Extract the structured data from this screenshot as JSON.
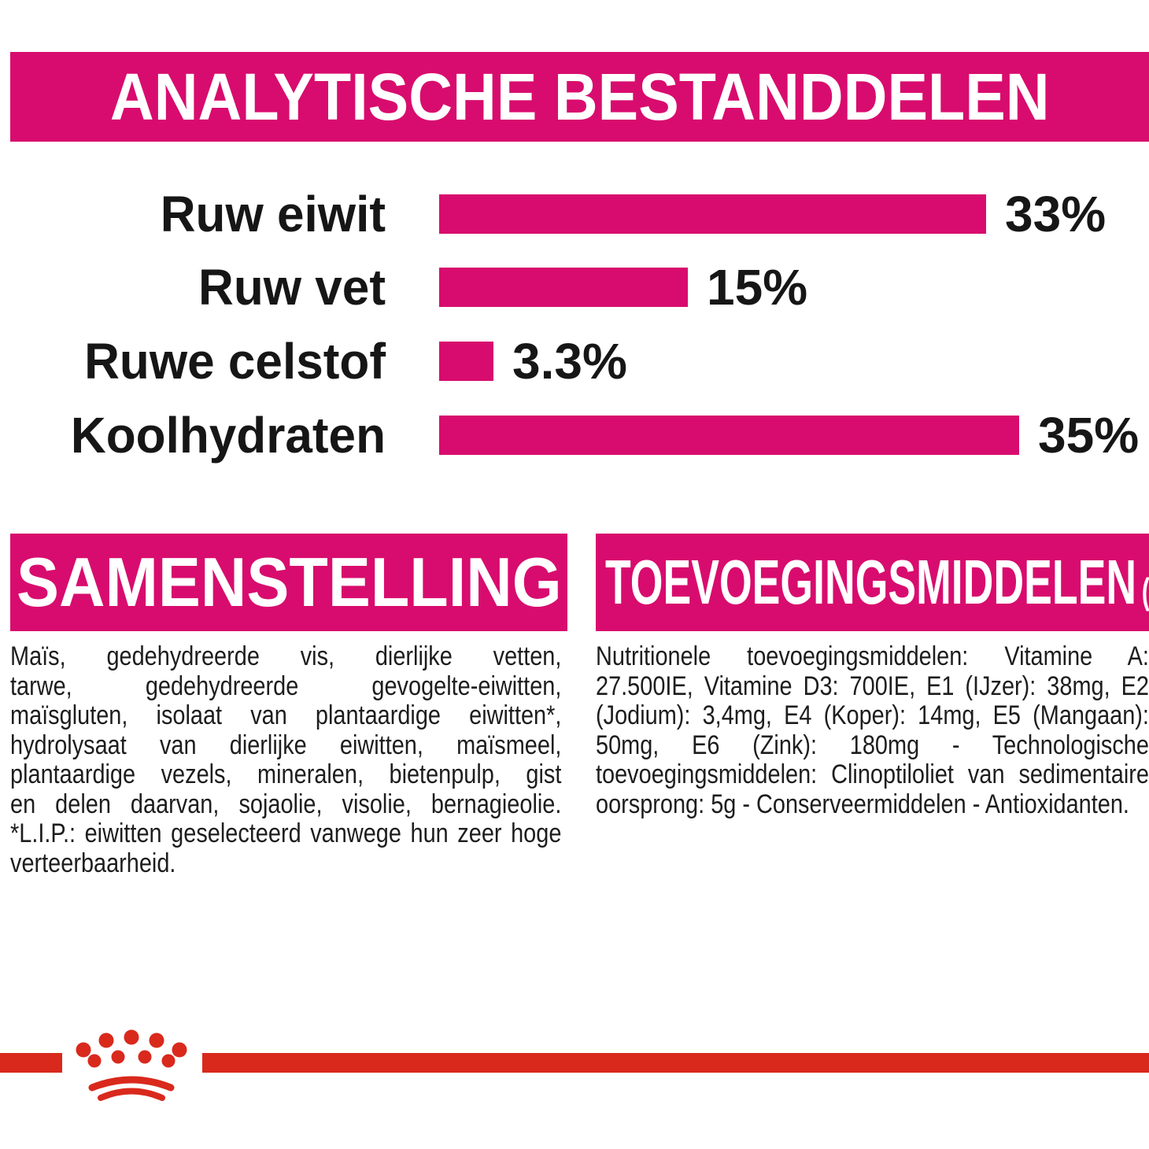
{
  "page": {
    "background_color": "#ffffff",
    "accent_magenta": "#d80c6e",
    "brand_red": "#d9291c",
    "text_color": "#1d1d1d"
  },
  "analytical_section": {
    "title": "ANALYTISCHE BESTANDDELEN"
  },
  "chart_data": {
    "type": "bar",
    "orientation": "horizontal",
    "title": "ANALYTISCHE BESTANDDELEN",
    "categories": [
      "Ruw eiwit",
      "Ruw vet",
      "Ruwe celstof",
      "Koolhydraten"
    ],
    "values": [
      33,
      15,
      3.3,
      35
    ],
    "value_labels": [
      "33%",
      "15%",
      "3.3%",
      "35%"
    ],
    "xlabel": "",
    "ylabel": "",
    "xlim": [
      0,
      35
    ],
    "grid": false,
    "legend": false,
    "bar_color": "#d80c6e"
  },
  "samenstelling_section": {
    "title": "SAMENSTELLING",
    "lines": [
      "Maïs, gedehydreerde vis, dierlijke vetten,",
      "tarwe, gedehydreerde gevogelte-eiwitten,",
      "maïsgluten, isolaat van plantaardige eiwitten*,",
      "hydrolysaat van dierlijke eiwitten, maïsmeel,",
      "plantaardige vezels, mineralen, bietenpulp, gist",
      "en delen daarvan, sojaolie, visolie, bernagieolie.",
      "*L.I.P.: eiwitten geselecteerd vanwege hun zeer hoge",
      "verteerbaarheid."
    ]
  },
  "toevoeging_section": {
    "title": "TOEVOEGINGSMIDDELEN",
    "title_suffix": "(/kg)",
    "lines": [
      "Nutritionele toevoegingsmiddelen: Vitamine A:",
      "27.500IE, Vitamine D3: 700IE, E1 (IJzer): 38mg, E2",
      "(Jodium): 3,4mg, E4 (Koper): 14mg, E5 (Mangaan):",
      "50mg, E6 (Zink): 180mg - Technologische",
      "toevoegingsmiddelen: Clinoptiloliet van sedimentaire",
      "oorsprong: 5g - Conserveermiddelen - Antioxidanten."
    ]
  },
  "footer": {
    "logo_name": "royal-canin-crown-logo",
    "logo_color": "#d9291c"
  }
}
